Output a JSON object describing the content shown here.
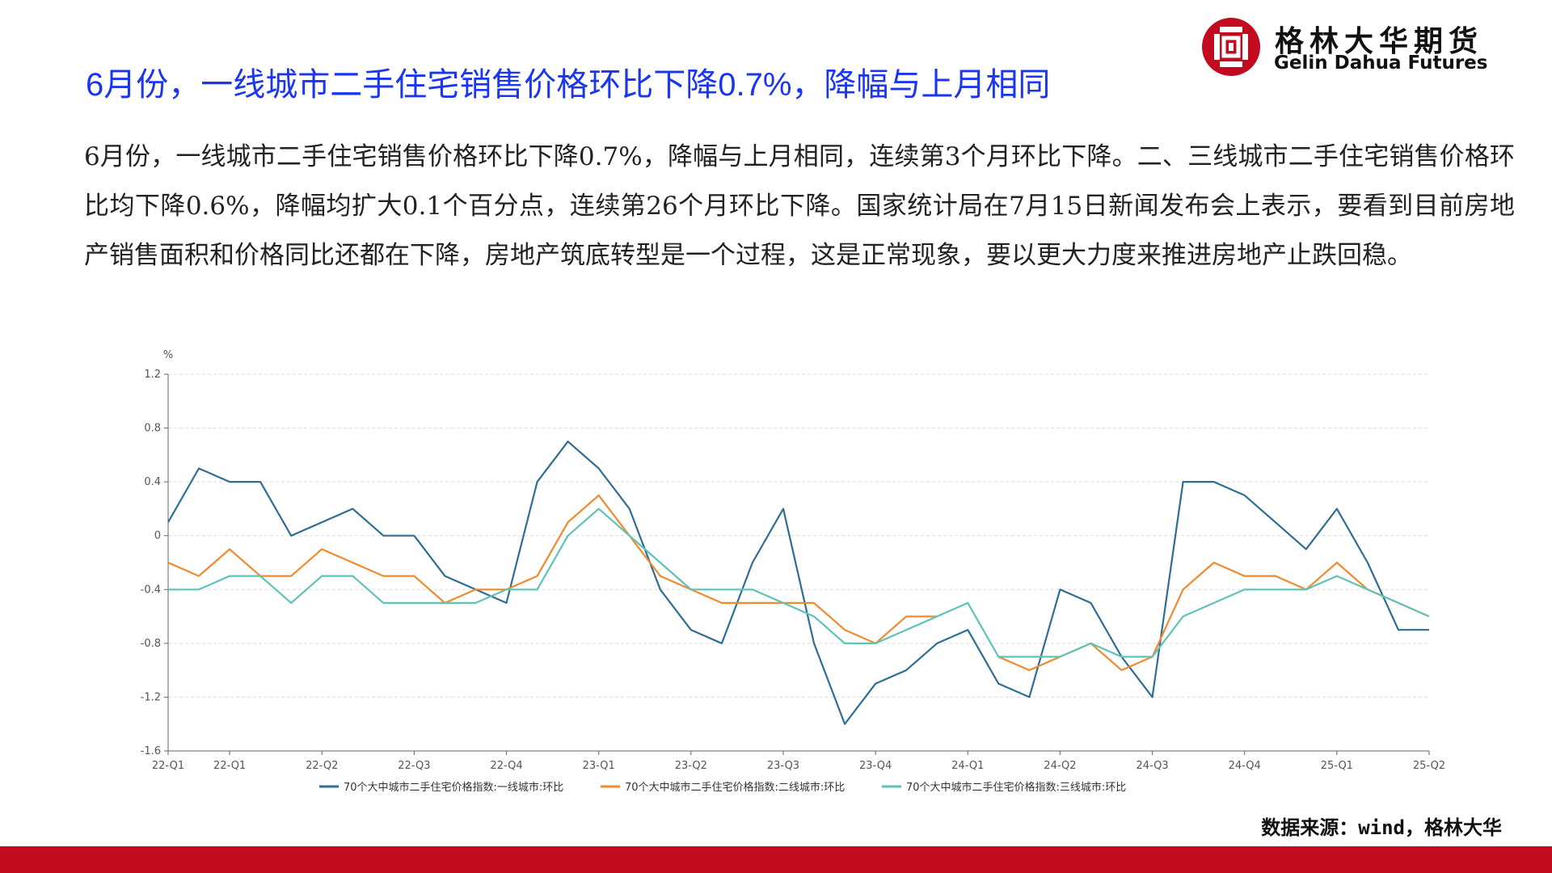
{
  "slide": {
    "title": "6月份，一线城市二手住宅销售价格环比下降0.7%，降幅与上月相同",
    "paragraph": "6月份，一线城市二手住宅销售价格环比下降0.7%，降幅与上月相同，连续第3个月环比下降。二、三线城市二手住宅销售价格环比均下降0.6%，降幅均扩大0.1个百分点，连续第26个月环比下降。国家统计局在7月15日新闻发布会上表示，要看到目前房地产销售面积和价格同比还都在下降，房地产筑底转型是一个过程，这是正常现象，要以更大力度来推进房地产止跌回稳。",
    "source": "数据来源：wind，格林大华"
  },
  "logo": {
    "name_cn": "格林大华期货",
    "name_en": "Gelin Dahua Futures",
    "color": "#c20b1e"
  },
  "colors": {
    "title": "#1a36f0",
    "bottom_bar": "#c20b1e"
  },
  "chart_data": {
    "type": "line",
    "ylabel": "%",
    "ylim": [
      -1.6,
      1.2
    ],
    "yticks": [
      1.2,
      0.8,
      0.4,
      0,
      -0.4,
      -0.8,
      -1.2,
      -1.6
    ],
    "grid": true,
    "legend_position": "bottom",
    "x_tick_labels": [
      "22-Q1",
      "22-Q1",
      "22-Q2",
      "22-Q3",
      "22-Q4",
      "23-Q1",
      "23-Q2",
      "23-Q3",
      "23-Q4",
      "24-Q1",
      "24-Q2",
      "24-Q3",
      "24-Q4",
      "25-Q1",
      "25-Q2"
    ],
    "x_tick_index": [
      0,
      2,
      5,
      8,
      11,
      14,
      17,
      20,
      23,
      26,
      29,
      32,
      35,
      38,
      41
    ],
    "series": [
      {
        "name": "70个大中城市二手住宅价格指数:一线城市:环比",
        "color": "#2e6e94",
        "values": [
          0.1,
          0.5,
          0.4,
          0.4,
          0.0,
          0.1,
          0.2,
          0.0,
          0.0,
          -0.3,
          -0.4,
          -0.5,
          0.4,
          0.7,
          0.5,
          0.2,
          -0.4,
          -0.7,
          -0.8,
          -0.2,
          0.2,
          -0.8,
          -1.4,
          -1.1,
          -1.0,
          -0.8,
          -0.7,
          -1.1,
          -1.2,
          -0.4,
          -0.5,
          -0.9,
          -1.2,
          0.4,
          0.4,
          0.3,
          0.1,
          -0.1,
          0.2,
          -0.2,
          -0.7,
          -0.7
        ]
      },
      {
        "name": "70个大中城市二手住宅价格指数:二线城市:环比",
        "color": "#f08a2c",
        "values": [
          -0.2,
          -0.3,
          -0.1,
          -0.3,
          -0.3,
          -0.1,
          -0.2,
          -0.3,
          -0.3,
          -0.5,
          -0.4,
          -0.4,
          -0.3,
          0.1,
          0.3,
          0.0,
          -0.3,
          -0.4,
          -0.5,
          -0.5,
          -0.5,
          -0.5,
          -0.7,
          -0.8,
          -0.6,
          -0.6,
          null,
          -0.9,
          -1.0,
          -0.9,
          -0.8,
          -1.0,
          -0.9,
          -0.4,
          -0.2,
          -0.3,
          -0.3,
          -0.4,
          -0.2,
          -0.4,
          -0.5,
          -0.6
        ]
      },
      {
        "name": "70个大中城市二手住宅价格指数:三线城市:环比",
        "color": "#5fc2b8",
        "values": [
          -0.4,
          -0.4,
          -0.3,
          -0.3,
          -0.5,
          -0.3,
          -0.3,
          -0.5,
          -0.5,
          -0.5,
          -0.5,
          -0.4,
          -0.4,
          0.0,
          0.2,
          0.0,
          -0.2,
          -0.4,
          -0.4,
          -0.4,
          -0.5,
          -0.6,
          -0.8,
          -0.8,
          -0.7,
          -0.6,
          -0.5,
          -0.9,
          -0.9,
          -0.9,
          -0.8,
          -0.9,
          -0.9,
          -0.6,
          -0.5,
          -0.4,
          -0.4,
          -0.4,
          -0.3,
          -0.4,
          -0.5,
          -0.6
        ]
      }
    ]
  }
}
